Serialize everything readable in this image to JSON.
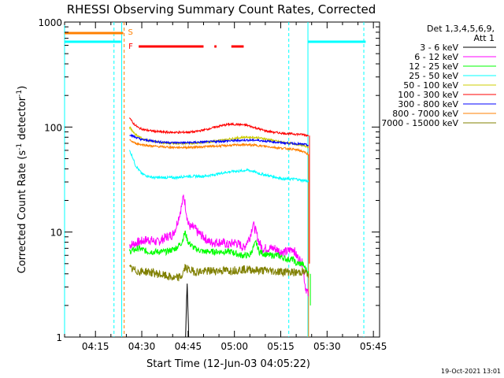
{
  "chart_data": {
    "type": "line",
    "title": "RHESSI Observing Summary Count Rates, Corrected",
    "xlabel": "Start Time (12-Jun-03 04:05:22)",
    "ylabel_main": "Corrected Count Rate (s",
    "ylabel_sup1": "-1",
    "ylabel_mid": " detector",
    "ylabel_sup2": "-1",
    "ylabel_end": ")",
    "x_unit": "minutes since 04:05:22",
    "xlim": [
      0,
      102
    ],
    "ylim": [
      1,
      1000
    ],
    "yscale": "log",
    "x_ticks": [
      {
        "label": "04:15",
        "value": 10
      },
      {
        "label": "04:30",
        "value": 25
      },
      {
        "label": "04:45",
        "value": 40
      },
      {
        "label": "05:00",
        "value": 55
      },
      {
        "label": "05:15",
        "value": 70
      },
      {
        "label": "05:30",
        "value": 85
      },
      {
        "label": "05:45",
        "value": 100
      }
    ],
    "y_ticks": [
      {
        "label": "1",
        "value": 1
      },
      {
        "label": "10",
        "value": 10
      },
      {
        "label": "100",
        "value": 100
      },
      {
        "label": "1000",
        "value": 1000
      }
    ],
    "legend_title": [
      "Det 1,3,4,5,6,9,",
      "Att 1"
    ],
    "legend": [
      {
        "label": "3 - 6 keV",
        "color": "#000000"
      },
      {
        "label": "6 - 12 keV",
        "color": "#ff00ff"
      },
      {
        "label": "12 - 25 keV",
        "color": "#00ff00"
      },
      {
        "label": "25 - 50 keV",
        "color": "#00ffff"
      },
      {
        "label": "50 - 100 keV",
        "color": "#cccc00"
      },
      {
        "label": "100 - 300 keV",
        "color": "#ff0000"
      },
      {
        "label": "300 - 800 keV",
        "color": "#0000ff"
      },
      {
        "label": "800 - 7000 keV",
        "color": "#ff8000"
      },
      {
        "label": "7000 - 15000 keV",
        "color": "#808000"
      }
    ],
    "series": [
      {
        "name": "6 - 12 keV",
        "color": "#ff00ff",
        "x": [
          21,
          24,
          27,
          30,
          33,
          35,
          36,
          37,
          38,
          38.5,
          39,
          39.5,
          40,
          41,
          42,
          43,
          45,
          47,
          49,
          51,
          53,
          55,
          57,
          58,
          59,
          60,
          61,
          62,
          63,
          64,
          66,
          68,
          70,
          72,
          74,
          75,
          77,
          78,
          79
        ],
        "y": [
          7.5,
          8,
          8.5,
          8,
          9,
          9.5,
          11,
          14,
          18,
          22,
          19,
          15,
          12,
          11,
          11,
          10,
          9,
          8,
          8,
          8,
          7.5,
          8,
          7.5,
          7,
          8,
          9,
          12,
          10,
          8,
          7,
          7,
          7,
          6.5,
          6.5,
          7,
          6,
          5,
          3,
          2.5
        ]
      },
      {
        "name": "12 - 25 keV",
        "color": "#00ff00",
        "x": [
          21,
          24,
          27,
          30,
          33,
          36,
          38,
          39,
          40,
          42,
          45,
          48,
          51,
          54,
          57,
          60,
          61,
          62,
          63,
          66,
          69,
          72,
          74,
          75,
          77,
          78,
          79
        ],
        "y": [
          6.5,
          7,
          6.5,
          6.5,
          6.5,
          7,
          8,
          10,
          8,
          7,
          6.5,
          6.5,
          6.5,
          6.5,
          6,
          6,
          7,
          8,
          6.5,
          6,
          6,
          5.5,
          5.5,
          5,
          5,
          4.5,
          4
        ]
      },
      {
        "name": "25 - 50 keV",
        "color": "#00ffff",
        "x": [
          21,
          22,
          23,
          25,
          27,
          29,
          31,
          33,
          36,
          39,
          42,
          45,
          48,
          50,
          52,
          55,
          57,
          59,
          61,
          63,
          65,
          67,
          69,
          71,
          73,
          75,
          77,
          78,
          79
        ],
        "y": [
          60,
          52,
          43,
          36,
          34,
          33,
          33,
          33,
          33,
          34,
          34,
          34,
          35,
          36,
          37,
          38,
          38,
          39,
          38,
          36,
          35,
          34,
          33,
          32,
          32,
          32,
          31,
          31,
          30
        ]
      },
      {
        "name": "50 - 100 keV",
        "color": "#cccc00",
        "x": [
          21,
          23,
          25,
          27,
          30,
          33,
          36,
          40,
          44,
          48,
          52,
          55,
          58,
          61,
          64,
          67,
          70,
          73,
          76,
          78,
          79
        ],
        "y": [
          100,
          85,
          78,
          74,
          72,
          70,
          70,
          70,
          71,
          73,
          76,
          78,
          80,
          80,
          78,
          75,
          72,
          70,
          68,
          66,
          65
        ]
      },
      {
        "name": "100 - 300 keV",
        "color": "#ff0000",
        "x": [
          21,
          22,
          24,
          26,
          28,
          31,
          34,
          38,
          42,
          46,
          50,
          53,
          56,
          59,
          62,
          65,
          68,
          71,
          74,
          77,
          78,
          79
        ],
        "y": [
          125,
          110,
          98,
          94,
          92,
          90,
          89,
          89,
          90,
          95,
          102,
          106,
          106,
          104,
          98,
          92,
          89,
          87,
          86,
          85,
          84,
          83
        ]
      },
      {
        "name": "300 - 800 keV",
        "color": "#0000ff",
        "x": [
          21,
          23,
          25,
          28,
          31,
          35,
          40,
          45,
          50,
          54,
          58,
          62,
          66,
          70,
          73,
          76,
          78,
          79
        ],
        "y": [
          85,
          80,
          76,
          74,
          72,
          71,
          71,
          72,
          73,
          74,
          75,
          75,
          73,
          71,
          70,
          69,
          68,
          67
        ]
      },
      {
        "name": "800 - 7000 keV",
        "color": "#ff8000",
        "x": [
          21,
          23,
          25,
          28,
          31,
          35,
          40,
          45,
          50,
          54,
          58,
          62,
          66,
          70,
          73,
          76,
          78,
          79
        ],
        "y": [
          75,
          70,
          68,
          66,
          65,
          64,
          64,
          65,
          66,
          67,
          68,
          67,
          65,
          63,
          62,
          60,
          57,
          55
        ]
      },
      {
        "name": "7000 - 15000 keV",
        "color": "#808000",
        "x": [
          21,
          24,
          27,
          30,
          33,
          36,
          38,
          39,
          40,
          42,
          45,
          48,
          51,
          54,
          57,
          60,
          63,
          66,
          69,
          72,
          75,
          77,
          79
        ],
        "y": [
          4.5,
          4.2,
          4.2,
          4.0,
          3.8,
          3.6,
          3.8,
          4.6,
          4.4,
          4.2,
          4.2,
          4.3,
          4.3,
          4.3,
          4.4,
          4.4,
          4.3,
          4.3,
          4.2,
          4.2,
          4.1,
          4.2,
          4.0
        ]
      },
      {
        "name": "3 - 6 keV",
        "color": "#000000",
        "x": [
          39.2,
          39.5,
          39.7,
          40,
          40.2
        ],
        "y": [
          1,
          2.2,
          3.2,
          1.6,
          1
        ]
      }
    ],
    "extra_segments": [
      {
        "name": "cyan-left-level",
        "color": "#00ffff",
        "x": [
          0,
          18.3
        ],
        "y": [
          650,
          650
        ]
      },
      {
        "name": "cyan-right-level",
        "color": "#00ffff",
        "x": [
          78.8,
          97.5
        ],
        "y": [
          650,
          650
        ]
      },
      {
        "name": "orange-drop",
        "color": "#ff8000",
        "x": [
          79,
          79
        ],
        "y": [
          55,
          1
        ]
      },
      {
        "name": "red-drop",
        "color": "#ff0000",
        "x": [
          79.3,
          79.3
        ],
        "y": [
          83,
          5
        ]
      },
      {
        "name": "green-drop",
        "color": "#00ff00",
        "x": [
          79.6,
          79.6
        ],
        "y": [
          4,
          2
        ]
      }
    ],
    "saa_flag": {
      "label": "S",
      "color": "#ff8000",
      "x": [
        0,
        19
      ]
    },
    "flare_flag": {
      "label": "F",
      "color": "#ff0000",
      "segments": [
        [
          24,
          45
        ],
        [
          48.5,
          49.2
        ],
        [
          54,
          58
        ]
      ]
    },
    "vlines": [
      {
        "name": "night-line",
        "x": 0,
        "color": "#00ffff",
        "style": "solid"
      },
      {
        "name": "night-line",
        "x": 16,
        "color": "#00ffff",
        "style": "dashed"
      },
      {
        "name": "saa-start-line",
        "x": 18.5,
        "color": "#00ffff",
        "style": "solid"
      },
      {
        "name": "saa-end-line",
        "x": 19.3,
        "color": "#ff8000",
        "style": "dashed"
      },
      {
        "name": "night-line",
        "x": 72.6,
        "color": "#00ffff",
        "style": "dashed"
      },
      {
        "name": "night-line",
        "x": 78.8,
        "color": "#00ffff",
        "style": "solid"
      },
      {
        "name": "night-line",
        "x": 96.9,
        "color": "#00ffff",
        "style": "dashed"
      }
    ],
    "footer": "19-Oct-2021 13:01"
  }
}
